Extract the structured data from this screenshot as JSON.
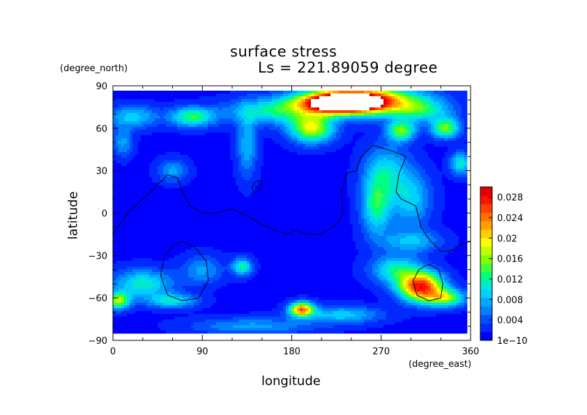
{
  "chart_data": {
    "type": "heatmap",
    "title": "surface stress",
    "subtitle": "Ls = 221.89059 degree",
    "xlabel": "longitude",
    "ylabel": "latitude",
    "x_unit": "(degree_east)",
    "y_unit": "(degree_north)",
    "xlim": [
      0,
      360
    ],
    "ylim": [
      -90,
      90
    ],
    "x_ticks": [
      0,
      90,
      180,
      270,
      360
    ],
    "y_ticks": [
      90,
      60,
      30,
      0,
      -30,
      -60,
      -90
    ],
    "x_tick_labels": [
      "0",
      "90",
      "180",
      "270",
      "360"
    ],
    "y_tick_labels": [
      "90",
      "60",
      "30",
      "0",
      "−30",
      "−60",
      "−90"
    ],
    "colorbar": {
      "min": 0,
      "max": 0.03,
      "tick_labels": [
        "0.028",
        "0.024",
        "0.02",
        "0.016",
        "0.012",
        "0.008",
        "0.004",
        "1e−10"
      ],
      "tick_values": [
        0.028,
        0.024,
        0.02,
        0.016,
        0.012,
        0.008,
        0.004,
        0
      ],
      "colors": [
        "#0000ff",
        "#0028ff",
        "#0050ff",
        "#0080ff",
        "#00a8ff",
        "#00d0ff",
        "#00e8d0",
        "#00ff80",
        "#40ff40",
        "#80ff00",
        "#c0ff00",
        "#ffff00",
        "#ffd000",
        "#ffa000",
        "#ff7000",
        "#ff4000",
        "#ff1000",
        "#e00000"
      ]
    },
    "blobs": [
      {
        "lon": 230,
        "lat": 78,
        "rlon": 40,
        "rlat": 7,
        "value": 0.034
      },
      {
        "lon": 255,
        "lat": 80,
        "rlon": 55,
        "rlat": 10,
        "value": 0.02
      },
      {
        "lon": 200,
        "lat": 60,
        "rlon": 22,
        "rlat": 10,
        "value": 0.017
      },
      {
        "lon": 160,
        "lat": 72,
        "rlon": 45,
        "rlat": 9,
        "value": 0.01
      },
      {
        "lon": 80,
        "lat": 68,
        "rlon": 22,
        "rlat": 7,
        "value": 0.012
      },
      {
        "lon": 20,
        "lat": 68,
        "rlon": 25,
        "rlat": 8,
        "value": 0.008
      },
      {
        "lon": 290,
        "lat": 58,
        "rlon": 14,
        "rlat": 7,
        "value": 0.014
      },
      {
        "lon": 335,
        "lat": 60,
        "rlon": 14,
        "rlat": 7,
        "value": 0.014
      },
      {
        "lon": 310,
        "lat": 72,
        "rlon": 30,
        "rlat": 8,
        "value": 0.009
      },
      {
        "lon": 135,
        "lat": 48,
        "rlon": 10,
        "rlat": 22,
        "value": 0.007
      },
      {
        "lon": 275,
        "lat": 30,
        "rlon": 22,
        "rlat": 18,
        "value": 0.008
      },
      {
        "lon": 265,
        "lat": 5,
        "rlon": 15,
        "rlat": 20,
        "value": 0.011
      },
      {
        "lon": 300,
        "lat": 10,
        "rlon": 20,
        "rlat": 20,
        "value": 0.008
      },
      {
        "lon": 350,
        "lat": 35,
        "rlon": 10,
        "rlat": 8,
        "value": 0.01
      },
      {
        "lon": 60,
        "lat": 30,
        "rlon": 15,
        "rlat": 8,
        "value": 0.006
      },
      {
        "lon": 10,
        "lat": 50,
        "rlon": 10,
        "rlat": 10,
        "value": 0.006
      },
      {
        "lon": 310,
        "lat": -52,
        "rlon": 22,
        "rlat": 10,
        "value": 0.026
      },
      {
        "lon": 335,
        "lat": -60,
        "rlon": 20,
        "rlat": 6,
        "value": 0.014
      },
      {
        "lon": 285,
        "lat": -40,
        "rlon": 25,
        "rlat": 10,
        "value": 0.01
      },
      {
        "lon": 30,
        "lat": -50,
        "rlon": 30,
        "rlat": 10,
        "value": 0.01
      },
      {
        "lon": 5,
        "lat": -62,
        "rlon": 12,
        "rlat": 6,
        "value": 0.015
      },
      {
        "lon": 60,
        "lat": -62,
        "rlon": 25,
        "rlat": 5,
        "value": 0.009
      },
      {
        "lon": 190,
        "lat": -68,
        "rlon": 12,
        "rlat": 5,
        "value": 0.022
      },
      {
        "lon": 230,
        "lat": -72,
        "rlon": 40,
        "rlat": 6,
        "value": 0.008
      },
      {
        "lon": 130,
        "lat": -38,
        "rlon": 10,
        "rlat": 6,
        "value": 0.011
      },
      {
        "lon": 140,
        "lat": -80,
        "rlon": 60,
        "rlat": 6,
        "value": 0.006
      },
      {
        "lon": 90,
        "lat": -40,
        "rlon": 20,
        "rlat": 10,
        "value": 0.006
      },
      {
        "lon": 300,
        "lat": -20,
        "rlon": 30,
        "rlat": 8,
        "value": 0.007
      }
    ],
    "contours": [
      [
        [
          0,
          -15
        ],
        [
          15,
          0
        ],
        [
          30,
          10
        ],
        [
          45,
          20
        ],
        [
          55,
          27
        ],
        [
          65,
          25
        ],
        [
          70,
          15
        ],
        [
          78,
          5
        ],
        [
          90,
          0
        ],
        [
          105,
          0
        ],
        [
          120,
          3
        ],
        [
          135,
          -2
        ],
        [
          150,
          -8
        ],
        [
          162,
          -12
        ],
        [
          175,
          -15
        ],
        [
          185,
          -12
        ],
        [
          195,
          -15
        ],
        [
          210,
          -15
        ],
        [
          225,
          -8
        ],
        [
          232,
          0
        ],
        [
          230,
          15
        ],
        [
          235,
          28
        ],
        [
          245,
          30
        ],
        [
          250,
          40
        ],
        [
          262,
          48
        ],
        [
          285,
          43
        ],
        [
          295,
          40
        ],
        [
          288,
          28
        ],
        [
          285,
          15
        ],
        [
          290,
          10
        ],
        [
          305,
          5
        ],
        [
          310,
          -10
        ],
        [
          320,
          -20
        ],
        [
          330,
          -27
        ],
        [
          340,
          -27
        ],
        [
          350,
          -22
        ],
        [
          360,
          -20
        ]
      ],
      [
        [
          150,
          23
        ],
        [
          143,
          22
        ],
        [
          140,
          18
        ],
        [
          143,
          14
        ],
        [
          148,
          17
        ],
        [
          150,
          23
        ]
      ],
      [
        [
          70,
          -20
        ],
        [
          82,
          -24
        ],
        [
          94,
          -34
        ],
        [
          96,
          -48
        ],
        [
          86,
          -60
        ],
        [
          70,
          -62
        ],
        [
          55,
          -58
        ],
        [
          48,
          -44
        ],
        [
          52,
          -30
        ],
        [
          62,
          -22
        ],
        [
          70,
          -20
        ]
      ],
      [
        [
          318,
          -36
        ],
        [
          328,
          -40
        ],
        [
          332,
          -50
        ],
        [
          330,
          -60
        ],
        [
          318,
          -62
        ],
        [
          306,
          -58
        ],
        [
          302,
          -48
        ],
        [
          308,
          -40
        ],
        [
          318,
          -36
        ]
      ]
    ]
  }
}
